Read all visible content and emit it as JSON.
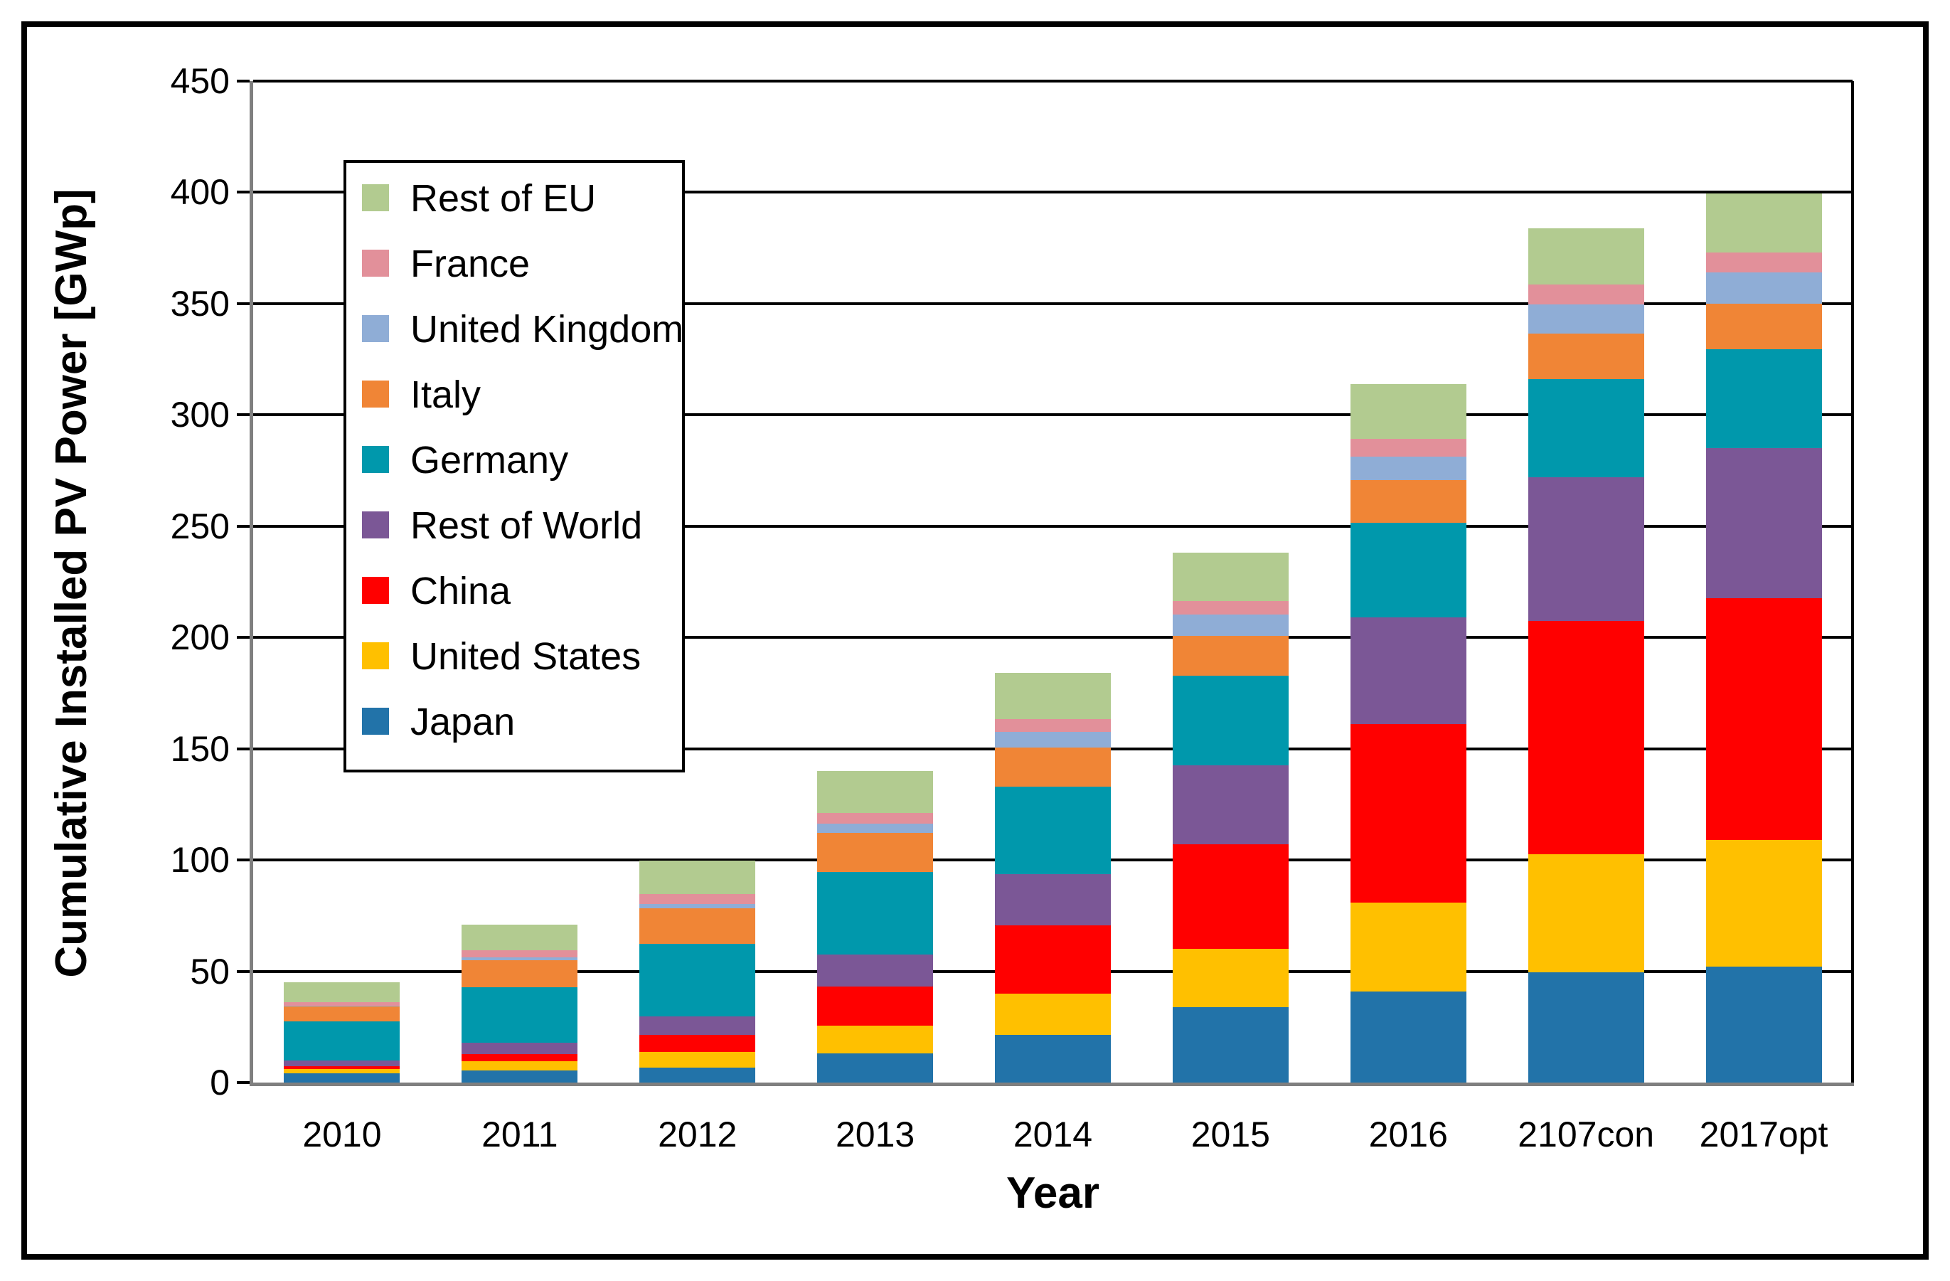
{
  "figure": {
    "background_color": "#ffffff",
    "border_color": "#000000"
  },
  "y_axis": {
    "title": "Cumulative Installed PV Power [GWp]",
    "tick_values": [
      0,
      50,
      100,
      150,
      200,
      250,
      300,
      350,
      400,
      450
    ],
    "axis_color": "#7f7f7f",
    "grid_color": "#000000"
  },
  "x_axis": {
    "title": "Year",
    "tick_labels": [
      "2010",
      "2011",
      "2012",
      "2013",
      "2014",
      "2015",
      "2016",
      "2107con",
      "2017opt"
    ]
  },
  "legend": {
    "order_top_to_bottom": [
      "Rest of EU",
      "France",
      "United Kingdom",
      "Italy",
      "Germany",
      "Rest of World",
      "China",
      "United States",
      "Japan"
    ],
    "border_color": "#000000",
    "background_color": "#ffffff"
  },
  "chart_data": {
    "type": "bar",
    "stacked": true,
    "title": "",
    "xlabel": "Year",
    "ylabel": "Cumulative Installed PV Power [GWp]",
    "ylim": [
      0,
      450
    ],
    "ytick_step": 50,
    "grid": true,
    "legend_position": "upper-left-inside",
    "categories": [
      "2010",
      "2011",
      "2012",
      "2013",
      "2014",
      "2015",
      "2016",
      "2107con",
      "2017opt"
    ],
    "series_stack_order": "bottom_to_top",
    "series": [
      {
        "name": "Japan",
        "color": "#2273a9",
        "values": [
          4,
          5.5,
          6.6,
          13,
          21.5,
          34,
          41,
          49.5,
          52
        ]
      },
      {
        "name": "United States",
        "color": "#ffc000",
        "values": [
          2,
          4,
          7,
          12.5,
          18.5,
          26,
          40,
          53,
          57
        ]
      },
      {
        "name": "China",
        "color": "#ff0000",
        "values": [
          1.5,
          3.4,
          7.7,
          17.6,
          30.5,
          47,
          80,
          105,
          108.5
        ]
      },
      {
        "name": "Rest of World",
        "color": "#7b5796",
        "values": [
          2.5,
          5,
          8.3,
          14.5,
          23,
          35.5,
          48,
          64.5,
          67.5
        ]
      },
      {
        "name": "Germany",
        "color": "#0098ac",
        "values": [
          17.5,
          25,
          32.8,
          37,
          39.3,
          40.3,
          42.5,
          44,
          44.5
        ]
      },
      {
        "name": "Italy",
        "color": "#f08536",
        "values": [
          7,
          12,
          16,
          17.5,
          17.8,
          18,
          19.3,
          20.5,
          20.5
        ]
      },
      {
        "name": "United Kingdom",
        "color": "#8fadd6",
        "values": [
          0.1,
          1.3,
          1.9,
          4.2,
          7,
          9.5,
          10.5,
          13,
          14
        ]
      },
      {
        "name": "France",
        "color": "#e2909a",
        "values": [
          1.4,
          3.4,
          4.5,
          4.7,
          5.8,
          6,
          7.8,
          9,
          9
        ]
      },
      {
        "name": "Rest of EU",
        "color": "#b2cb90",
        "values": [
          9,
          11.2,
          15,
          18.9,
          20.8,
          21.7,
          24.7,
          25.5,
          26.5
        ]
      }
    ]
  }
}
